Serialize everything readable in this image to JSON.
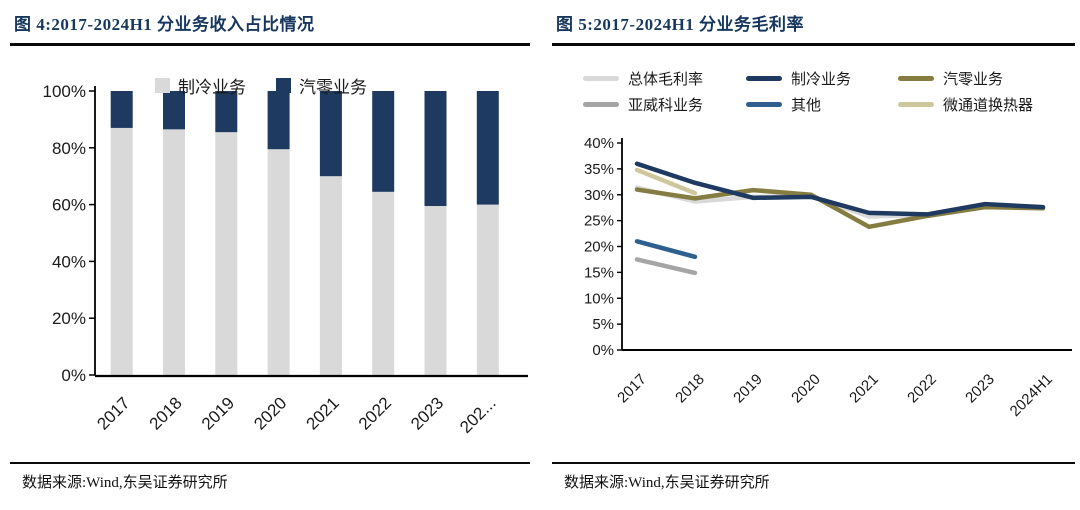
{
  "figure4": {
    "caption": "图 4:2017-2024H1 分业务收入占比情况",
    "source": "数据来源:Wind,东吴证券研究所"
  },
  "figure5": {
    "caption": "图 5:2017-2024H1 分业务毛利率",
    "source": "数据来源:Wind,东吴证券研究所"
  },
  "chart_data": [
    {
      "type": "bar",
      "stacked": true,
      "title": "2017-2024H1 分业务收入占比情况",
      "categories": [
        "2017",
        "2018",
        "2019",
        "2020",
        "2021",
        "2022",
        "2023",
        "2024H1"
      ],
      "x_display_labels": [
        "2017",
        "2018",
        "2019",
        "2020",
        "2021",
        "2022",
        "2023",
        "202..."
      ],
      "series": [
        {
          "name": "制冷业务",
          "color": "#d9d9d9",
          "values": [
            87,
            86.5,
            85.5,
            79.5,
            70,
            64.5,
            59.5,
            60
          ]
        },
        {
          "name": "汽零业务",
          "color": "#1f3a60",
          "values": [
            13,
            13.5,
            14.5,
            20.5,
            30,
            35.5,
            40.5,
            40
          ]
        }
      ],
      "ylabel": "",
      "xlabel": "",
      "ylim": [
        0,
        100
      ],
      "ytick_step": 20,
      "ytick_format": "percent",
      "grid": false,
      "legend_position": "top-inside"
    },
    {
      "type": "line",
      "title": "2017-2024H1 分业务毛利率",
      "x": [
        "2017",
        "2018",
        "2019",
        "2020",
        "2021",
        "2022",
        "2023",
        "2024H1"
      ],
      "series": [
        {
          "name": "总体毛利率",
          "color": "#d9d9d9",
          "values": [
            31.4,
            28.7,
            29.6,
            29.7,
            25.8,
            26.1,
            28.1,
            27.4
          ]
        },
        {
          "name": "亚威科业务",
          "color": "#a5a5a5",
          "values": [
            17.5,
            14.9,
            null,
            null,
            null,
            null,
            null,
            null
          ]
        },
        {
          "name": "其他",
          "color": "#2f5f8f",
          "values": [
            21.0,
            18.0,
            null,
            null,
            null,
            null,
            null,
            null
          ]
        },
        {
          "name": "微通道换热器",
          "color": "#cfc79c",
          "values": [
            34.8,
            30.3,
            null,
            null,
            null,
            null,
            null,
            null
          ]
        },
        {
          "name": "汽零业务",
          "color": "#857c42",
          "values": [
            31.0,
            29.3,
            30.9,
            30.0,
            23.8,
            25.9,
            27.6,
            27.4
          ]
        },
        {
          "name": "制冷业务",
          "color": "#1f3a60",
          "values": [
            36.0,
            32.3,
            29.4,
            29.6,
            26.5,
            26.2,
            28.2,
            27.6
          ]
        }
      ],
      "ylabel": "",
      "xlabel": "",
      "ylim": [
        0,
        40
      ],
      "ytick_step": 5,
      "ytick_format": "percent",
      "grid": false,
      "legend_position": "top"
    }
  ]
}
